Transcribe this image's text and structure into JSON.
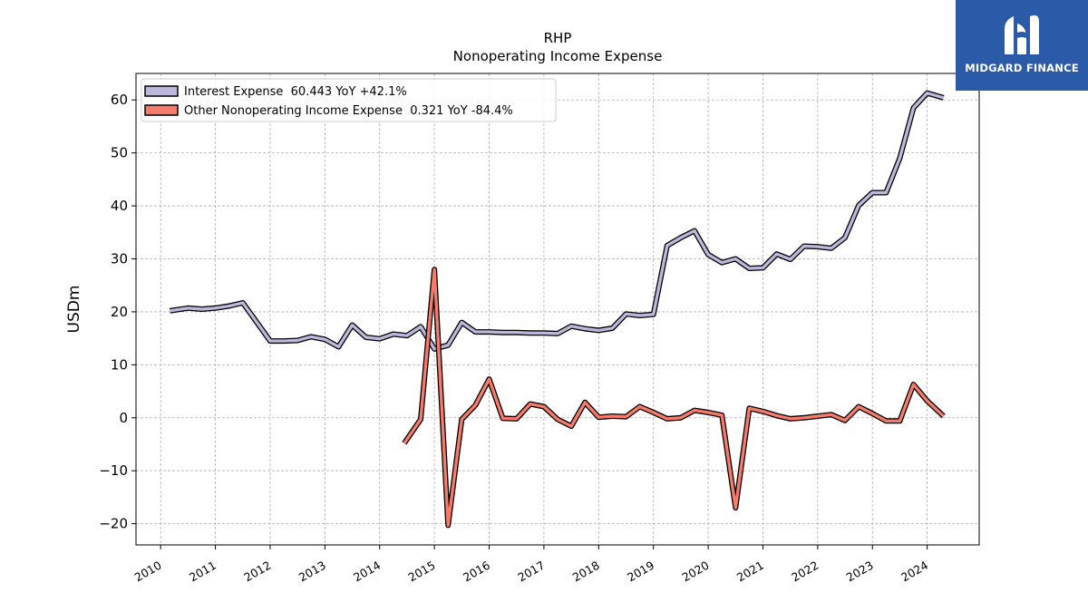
{
  "brand": {
    "name": "MIDGARD FINANCE",
    "box_color": "#2a5aa8"
  },
  "chart_data": {
    "type": "line",
    "title": "RHP",
    "subtitle": "Nonoperating Income Expense",
    "xlabel": "",
    "ylabel": "USDm",
    "xlim": [
      2009.55,
      2024.95
    ],
    "ylim": [
      -24,
      65
    ],
    "yticks": [
      -20,
      -10,
      0,
      10,
      20,
      30,
      40,
      50,
      60
    ],
    "xticks": [
      "2010",
      "2011",
      "2012",
      "2013",
      "2014",
      "2015",
      "2016",
      "2017",
      "2018",
      "2019",
      "2020",
      "2021",
      "2022",
      "2023",
      "2024"
    ],
    "grid": true,
    "legend_position": "top-left",
    "series": [
      {
        "name": "Interest Expense",
        "legend": "Interest Expense  60.443 YoY +42.1%",
        "color": "#bcb8dc",
        "x": [
          2010.17,
          2010.5,
          2010.75,
          2011.0,
          2011.25,
          2011.5,
          2011.75,
          2012.0,
          2012.25,
          2012.5,
          2012.75,
          2013.0,
          2013.25,
          2013.5,
          2013.75,
          2014.0,
          2014.25,
          2014.5,
          2014.75,
          2015.0,
          2015.25,
          2015.5,
          2015.75,
          2016.0,
          2016.25,
          2016.5,
          2016.75,
          2017.0,
          2017.25,
          2017.5,
          2017.75,
          2018.0,
          2018.25,
          2018.5,
          2018.75,
          2019.0,
          2019.25,
          2019.5,
          2019.75,
          2020.0,
          2020.25,
          2020.5,
          2020.75,
          2021.0,
          2021.25,
          2021.5,
          2021.75,
          2022.0,
          2022.25,
          2022.5,
          2022.75,
          2023.0,
          2023.25,
          2023.5,
          2023.75,
          2024.0,
          2024.3
        ],
        "y": [
          20.2,
          20.7,
          20.5,
          20.7,
          21.1,
          21.7,
          18.1,
          14.5,
          14.5,
          14.6,
          15.3,
          14.8,
          13.4,
          17.5,
          15.2,
          14.9,
          15.8,
          15.5,
          17.2,
          13.0,
          13.7,
          18.0,
          16.2,
          16.2,
          16.1,
          16.1,
          16.0,
          16.0,
          15.9,
          17.3,
          16.8,
          16.5,
          16.9,
          19.6,
          19.3,
          19.5,
          32.5,
          34.0,
          35.3,
          30.8,
          29.3,
          30.0,
          28.2,
          28.3,
          30.9,
          29.9,
          32.4,
          32.3,
          32.0,
          34.0,
          40.1,
          42.5,
          42.5,
          49.0,
          58.5,
          61.3,
          60.4
        ]
      },
      {
        "name": "Other Nonoperating Income Expense",
        "legend": "Other Nonoperating Income Expense  0.321 YoY -84.4%",
        "color": "#f77b6a",
        "x": [
          2014.45,
          2014.75,
          2015.0,
          2015.25,
          2015.5,
          2015.75,
          2016.0,
          2016.25,
          2016.5,
          2016.75,
          2017.0,
          2017.25,
          2017.5,
          2017.75,
          2018.0,
          2018.25,
          2018.5,
          2018.75,
          2019.0,
          2019.25,
          2019.5,
          2019.75,
          2020.0,
          2020.25,
          2020.5,
          2020.75,
          2021.0,
          2021.25,
          2021.5,
          2021.75,
          2022.0,
          2022.25,
          2022.5,
          2022.75,
          2023.0,
          2023.25,
          2023.5,
          2023.75,
          2024.0,
          2024.3
        ],
        "y": [
          -4.8,
          -0.3,
          28.0,
          -20.3,
          -0.3,
          2.4,
          7.3,
          -0.1,
          -0.2,
          2.6,
          2.1,
          -0.3,
          -1.6,
          2.9,
          0.1,
          0.3,
          0.2,
          2.1,
          1.0,
          -0.2,
          0.0,
          1.4,
          1.0,
          0.5,
          -17.0,
          1.8,
          1.2,
          0.4,
          -0.2,
          0.0,
          0.3,
          0.6,
          -0.5,
          2.1,
          0.8,
          -0.6,
          -0.6,
          6.3,
          3.2,
          0.3
        ]
      }
    ]
  }
}
